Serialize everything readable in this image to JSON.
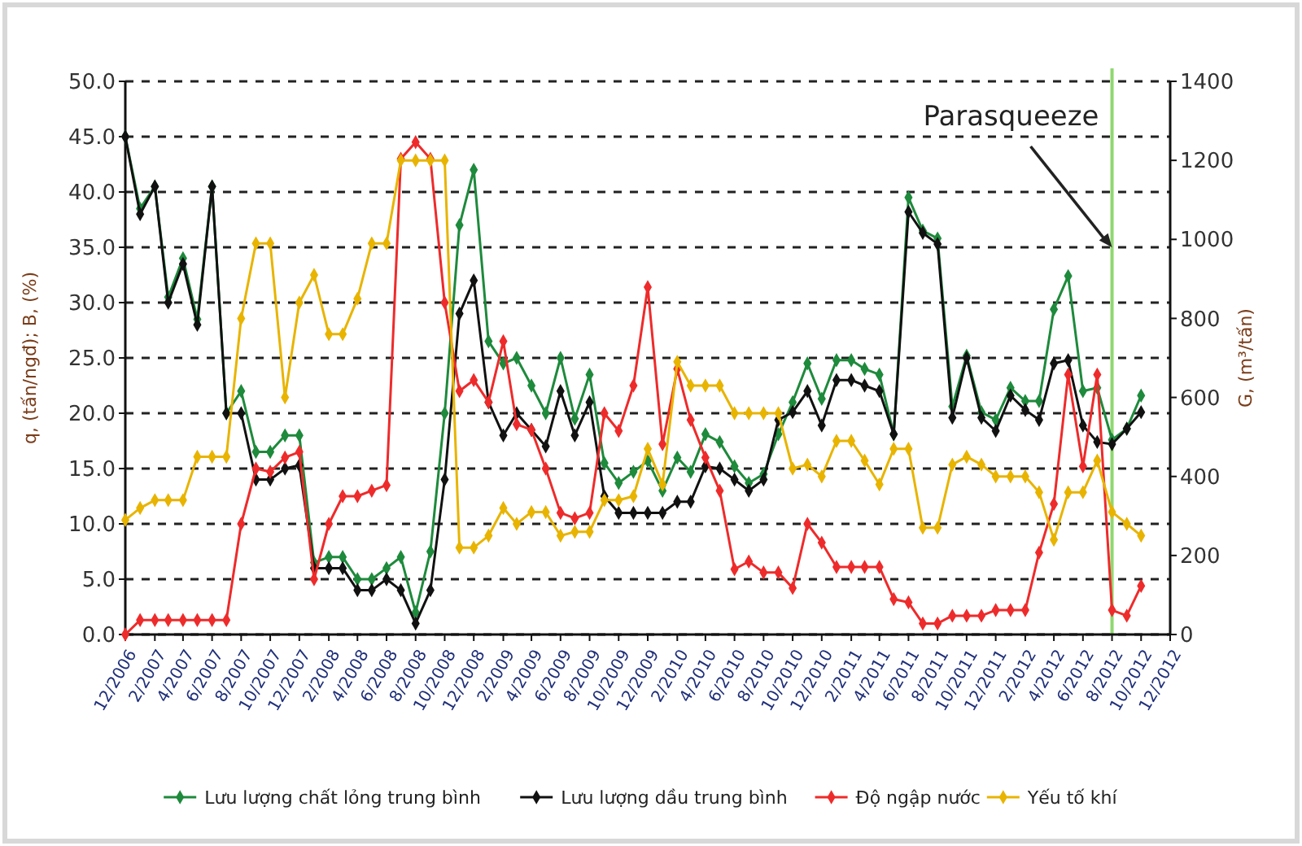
{
  "chart_data": {
    "type": "line",
    "x": [
      "2006-12",
      "2007-01",
      "2007-02",
      "2007-03",
      "2007-04",
      "2007-05",
      "2007-06",
      "2007-07",
      "2007-08",
      "2007-09",
      "2007-10",
      "2007-11",
      "2007-12",
      "2008-01",
      "2008-02",
      "2008-03",
      "2008-04",
      "2008-05",
      "2008-06",
      "2008-07",
      "2008-08",
      "2008-09",
      "2008-10",
      "2008-11",
      "2008-12",
      "2009-01",
      "2009-02",
      "2009-03",
      "2009-04",
      "2009-05",
      "2009-06",
      "2009-07",
      "2009-08",
      "2009-09",
      "2009-10",
      "2009-11",
      "2009-12",
      "2010-01",
      "2010-02",
      "2010-03",
      "2010-04",
      "2010-05",
      "2010-06",
      "2010-07",
      "2010-08",
      "2010-09",
      "2010-10",
      "2010-11",
      "2010-12",
      "2011-01",
      "2011-02",
      "2011-03",
      "2011-04",
      "2011-05",
      "2011-06",
      "2011-07",
      "2011-08",
      "2011-09",
      "2011-10",
      "2011-11",
      "2011-12",
      "2012-01",
      "2012-02",
      "2012-03",
      "2012-04",
      "2012-05",
      "2012-06",
      "2012-07",
      "2012-08",
      "2012-09",
      "2012-10"
    ],
    "series": [
      {
        "name": "Lưu lượng chất lỏng trung bình",
        "color": "#1e8a3c",
        "values": [
          45,
          38.5,
          40.5,
          30.5,
          34,
          28.5,
          40.5,
          20,
          22,
          16.5,
          16.5,
          18,
          18,
          6.5,
          7,
          7,
          5,
          5,
          6,
          7,
          2,
          7.5,
          20,
          37,
          42,
          26.5,
          24.5,
          25,
          22.5,
          20,
          25,
          19.5,
          23.5,
          15.5,
          13.7,
          14.7,
          15.7,
          13,
          16,
          14.7,
          18.1,
          17.4,
          15.2,
          13.7,
          14.5,
          18.1,
          21,
          24.5,
          21.3,
          24.8,
          24.8,
          24,
          23.5,
          18.1,
          39.5,
          36.5,
          35.8,
          20.6,
          25.2,
          20.1,
          19.4,
          22.3,
          21.1,
          21.1,
          29.4,
          32.4,
          22,
          22.3,
          17.6,
          18.6,
          21.6
        ]
      },
      {
        "name": "Lưu lượng dầu trung bình",
        "color": "#111111",
        "values": [
          45,
          38,
          40.5,
          30,
          33.5,
          28,
          40.5,
          20,
          20,
          14,
          14,
          15,
          15.3,
          6,
          6,
          6,
          4,
          4,
          5,
          4,
          1,
          4,
          14,
          29,
          32,
          21,
          18,
          20,
          18.5,
          17,
          22,
          18,
          21,
          12.5,
          11,
          11,
          11,
          11,
          12,
          12,
          15.2,
          15,
          14,
          13,
          14,
          19.4,
          20.1,
          22,
          18.9,
          23,
          23,
          22.5,
          22,
          18.1,
          38.2,
          36.3,
          35.3,
          19.6,
          25,
          19.6,
          18.4,
          21.6,
          20.3,
          19.4,
          24.5,
          24.8,
          18.9,
          17.4,
          17.2,
          18.6,
          20.1
        ]
      },
      {
        "name": "Độ ngập nước",
        "color": "#ee2b2b",
        "values": [
          0,
          1.3,
          1.3,
          1.3,
          1.3,
          1.3,
          1.3,
          1.3,
          10,
          15,
          14.7,
          16,
          16.5,
          5,
          10,
          12.5,
          12.5,
          13,
          13.5,
          43,
          44.5,
          43,
          30,
          22,
          23,
          21,
          26.5,
          19,
          18.5,
          15,
          11,
          10.5,
          11,
          20,
          18.4,
          22.5,
          31.4,
          17.2,
          24,
          19.4,
          16,
          13,
          5.9,
          6.6,
          5.6,
          5.6,
          4.2,
          10,
          8.3,
          6.1,
          6.1,
          6.1,
          6.1,
          3.2,
          2.9,
          1,
          1,
          1.7,
          1.7,
          1.7,
          2.2,
          2.2,
          2.2,
          7.4,
          11.8,
          23.5,
          15.2,
          23.5,
          2.2,
          1.7,
          4.4
        ]
      },
      {
        "name": "Yếu tố khí",
        "color": "#e8b400",
        "axis": "y2",
        "values": [
          290,
          320,
          340,
          340,
          340,
          450,
          450,
          450,
          800,
          990,
          990,
          600,
          840,
          910,
          760,
          760,
          850,
          990,
          990,
          1200,
          1200,
          1200,
          1200,
          220,
          220,
          250,
          320,
          280,
          310,
          310,
          250,
          260,
          260,
          340,
          340,
          350,
          470,
          380,
          690,
          630,
          630,
          630,
          560,
          560,
          560,
          560,
          420,
          430,
          400,
          490,
          490,
          440,
          380,
          470,
          470,
          270,
          270,
          430,
          450,
          430,
          400,
          400,
          400,
          360,
          240,
          360,
          360,
          440,
          310,
          280,
          250
        ]
      }
    ],
    "ylabel": "q, (tấn/ngđ); B, (%)",
    "y2label": "G, (m³/tấn)",
    "xlim": [
      "2006-12",
      "2012-12"
    ],
    "xticks": [
      {
        "value": "2006-12",
        "label": "12/2006"
      },
      {
        "value": "2007-02",
        "label": "2/2007"
      },
      {
        "value": "2007-04",
        "label": "4/2007"
      },
      {
        "value": "2007-06",
        "label": "6/2007"
      },
      {
        "value": "2007-08",
        "label": "8/2007"
      },
      {
        "value": "2007-10",
        "label": "10/2007"
      },
      {
        "value": "2007-12",
        "label": "12/2007"
      },
      {
        "value": "2008-02",
        "label": "2/2008"
      },
      {
        "value": "2008-04",
        "label": "4/2008"
      },
      {
        "value": "2008-06",
        "label": "6/2008"
      },
      {
        "value": "2008-08",
        "label": "8/2008"
      },
      {
        "value": "2008-10",
        "label": "10/2008"
      },
      {
        "value": "2008-12",
        "label": "12/2008"
      },
      {
        "value": "2009-02",
        "label": "2/2009"
      },
      {
        "value": "2009-04",
        "label": "4/2009"
      },
      {
        "value": "2009-06",
        "label": "6/2009"
      },
      {
        "value": "2009-08",
        "label": "8/2009"
      },
      {
        "value": "2009-10",
        "label": "10/2009"
      },
      {
        "value": "2009-12",
        "label": "12/2009"
      },
      {
        "value": "2010-02",
        "label": "2/2010"
      },
      {
        "value": "2010-04",
        "label": "4/2010"
      },
      {
        "value": "2010-06",
        "label": "6/2010"
      },
      {
        "value": "2010-08",
        "label": "8/2010"
      },
      {
        "value": "2010-10",
        "label": "10/2010"
      },
      {
        "value": "2010-12",
        "label": "12/2010"
      },
      {
        "value": "2011-02",
        "label": "2/2011"
      },
      {
        "value": "2011-04",
        "label": "4/2011"
      },
      {
        "value": "2011-06",
        "label": "6/2011"
      },
      {
        "value": "2011-08",
        "label": "8/2011"
      },
      {
        "value": "2011-10",
        "label": "10/2011"
      },
      {
        "value": "2011-12",
        "label": "12/2011"
      },
      {
        "value": "2012-02",
        "label": "2/2012"
      },
      {
        "value": "2012-04",
        "label": "4/2012"
      },
      {
        "value": "2012-06",
        "label": "6/2012"
      },
      {
        "value": "2012-08",
        "label": "8/2012"
      },
      {
        "value": "2012-10",
        "label": "10/2012"
      },
      {
        "value": "2012-12",
        "label": "12/2012"
      }
    ],
    "ylim": [
      0,
      50
    ],
    "yticks": [
      {
        "value": 0,
        "label": "0.0"
      },
      {
        "value": 5,
        "label": "5.0"
      },
      {
        "value": 10,
        "label": "10.0"
      },
      {
        "value": 15,
        "label": "15.0"
      },
      {
        "value": 20,
        "label": "20.0"
      },
      {
        "value": 25,
        "label": "25.0"
      },
      {
        "value": 30,
        "label": "30.0"
      },
      {
        "value": 35,
        "label": "35.0"
      },
      {
        "value": 40,
        "label": "40.0"
      },
      {
        "value": 45,
        "label": "45.0"
      },
      {
        "value": 50,
        "label": "50.0"
      }
    ],
    "y2lim": [
      0,
      1400
    ],
    "y2ticks": [
      0,
      200,
      400,
      600,
      800,
      1000,
      1200,
      1400
    ],
    "ref_lines": [
      {
        "axis": "x",
        "value": "2012-08",
        "color": "#8fd870"
      }
    ],
    "annotations": [
      {
        "text": "Parasqueeze",
        "x": "2012-08",
        "y": 35
      }
    ],
    "grid": "y",
    "legend": "bottom",
    "marker": "diamond",
    "line_style": "solid"
  }
}
